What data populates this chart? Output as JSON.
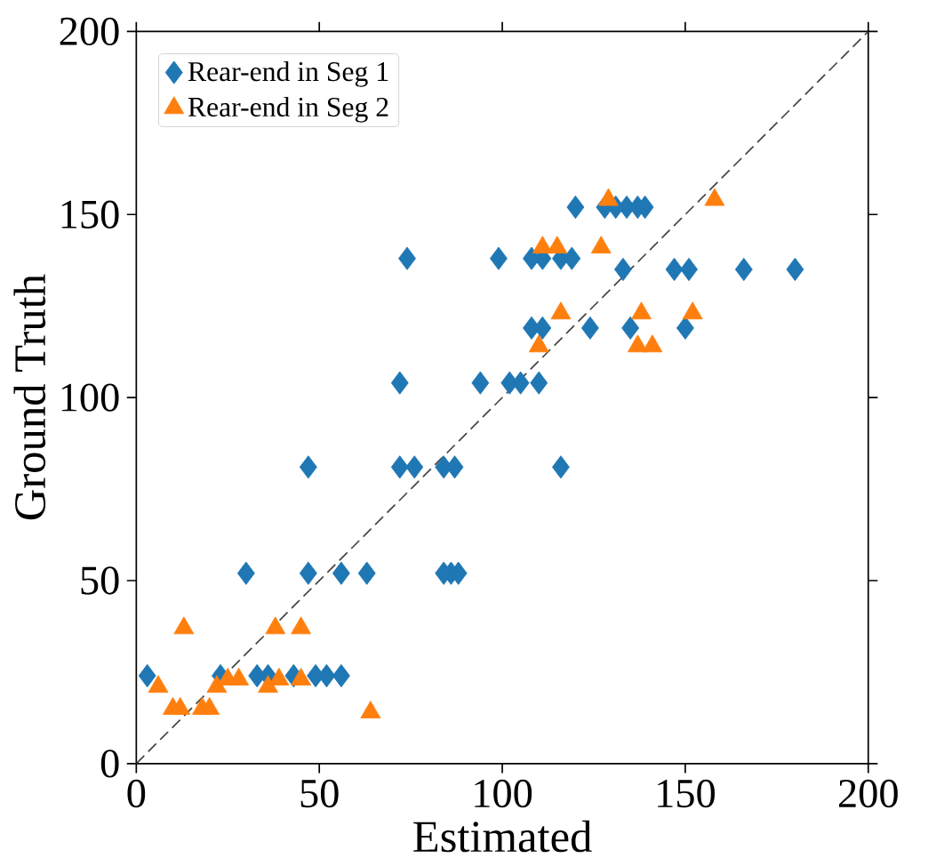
{
  "chart_data": {
    "type": "scatter",
    "xlabel": "Estimated",
    "ylabel": "Ground Truth",
    "xlim": [
      0,
      200
    ],
    "ylim": [
      0,
      200
    ],
    "xticks": [
      0,
      50,
      100,
      150,
      200
    ],
    "yticks": [
      0,
      50,
      100,
      150,
      200
    ],
    "grid": false,
    "legend": "top left",
    "series": [
      {
        "name": "Rear-end in Seg 1",
        "color": "#1f77b4",
        "marker": "diamond",
        "x": [
          3,
          23,
          26,
          29,
          33,
          36,
          40,
          43,
          46,
          49,
          52,
          56,
          30,
          47,
          56,
          63,
          84,
          86,
          88,
          47,
          72,
          76,
          84,
          87,
          116,
          72,
          94,
          102,
          105,
          110,
          108,
          111,
          124,
          135,
          150,
          74,
          99,
          108,
          111,
          116,
          119,
          133,
          147,
          151,
          166,
          180,
          120,
          128,
          131,
          134,
          137,
          139
        ],
        "values": [
          24,
          24,
          null,
          null,
          24,
          24,
          null,
          24,
          null,
          24,
          24,
          24,
          52,
          52,
          52,
          52,
          52,
          52,
          52,
          81,
          81,
          81,
          81,
          81,
          81,
          104,
          104,
          104,
          104,
          104,
          119,
          119,
          119,
          119,
          119,
          138,
          138,
          138,
          138,
          138,
          138,
          135,
          135,
          135,
          135,
          135,
          152,
          152,
          152,
          152,
          152,
          152
        ]
      },
      {
        "name": "Rear-end in Seg 2",
        "color": "#ff7f0e",
        "marker": "triangle",
        "x": [
          13,
          38,
          45,
          6,
          10,
          12,
          18,
          20,
          22,
          25,
          28,
          36,
          39,
          45,
          64,
          111,
          115,
          116,
          110,
          129,
          158,
          127,
          138,
          152,
          137,
          141
        ],
        "values": [
          37,
          37,
          37,
          21,
          15,
          15,
          15,
          15,
          21,
          23,
          23,
          21,
          23,
          23,
          14,
          141,
          141,
          123,
          114,
          154,
          154,
          141,
          123,
          123,
          114,
          114
        ]
      },
      {
        "type": "line",
        "color": "#444444",
        "line_style": "dashed",
        "marker": "none",
        "x": [
          0,
          200
        ],
        "values": [
          0,
          200
        ]
      }
    ]
  }
}
